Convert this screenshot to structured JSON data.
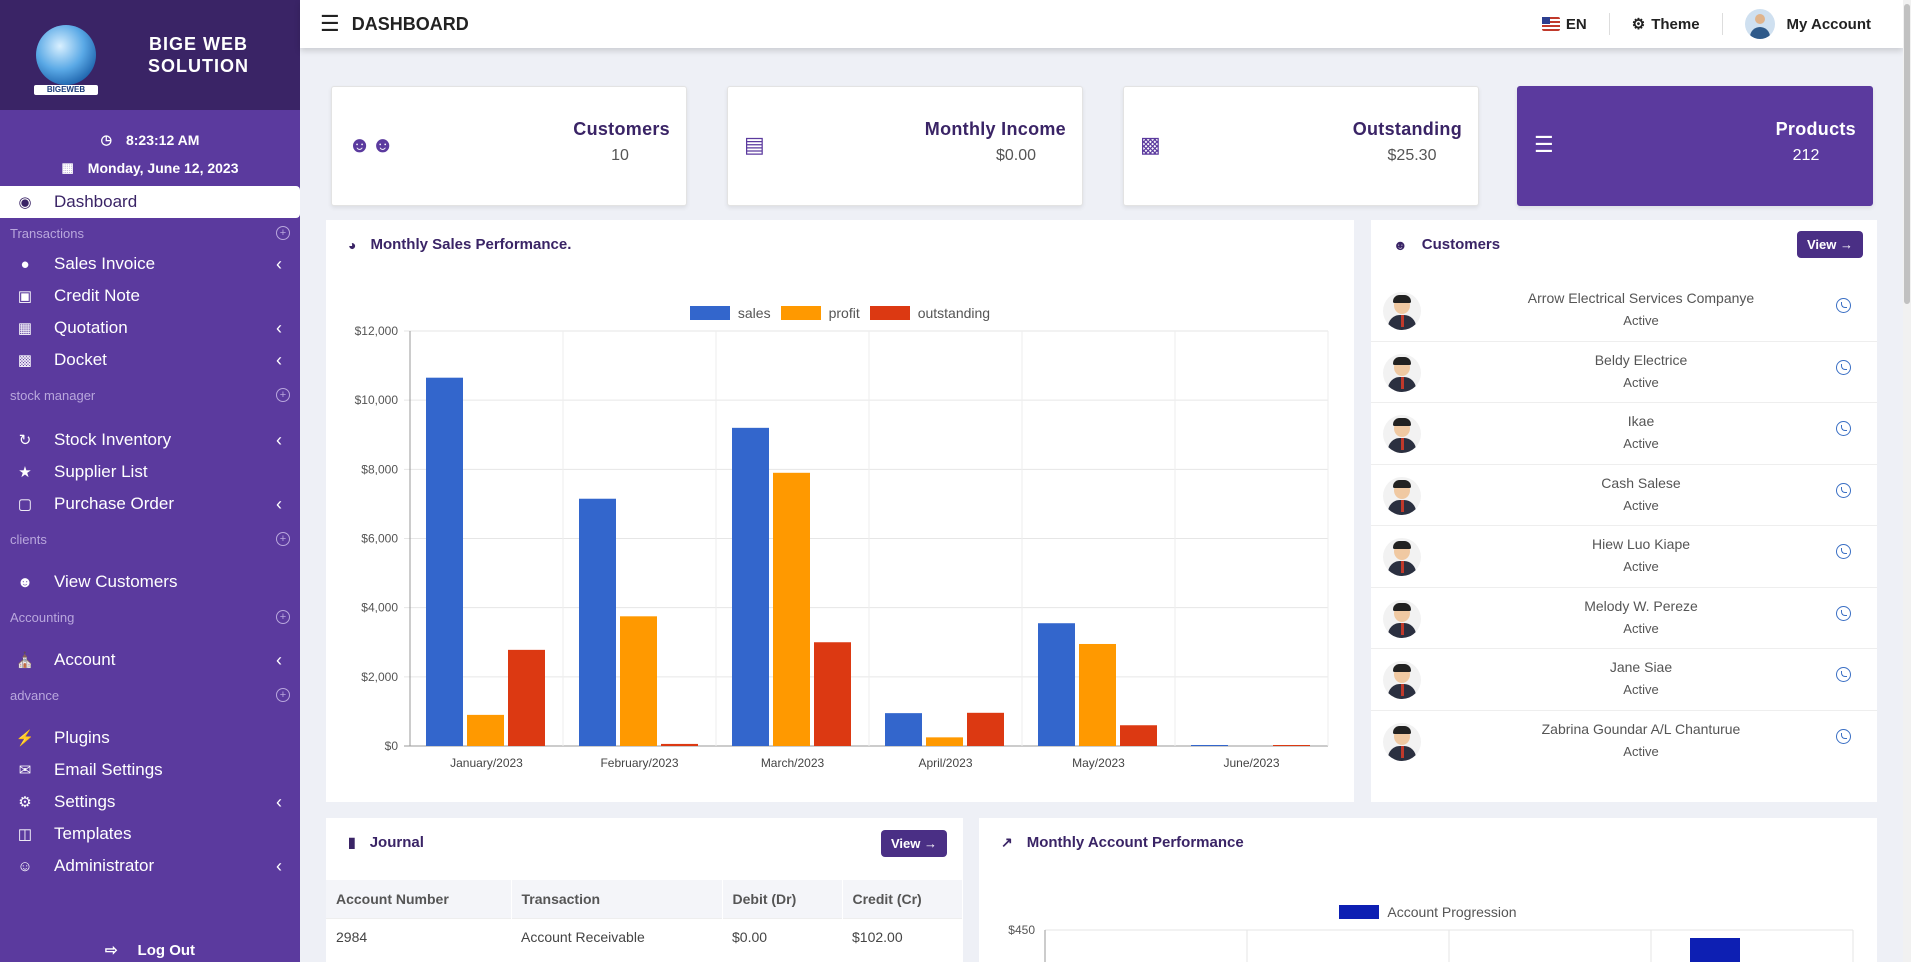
{
  "brand": {
    "logo_text": "BIGEWEB",
    "name_line1": "BIGE WEB",
    "name_line2": "SOLUTION"
  },
  "sidebar": {
    "time": "8:23:12 AM",
    "date": "Monday, June 12, 2023",
    "dashboard": "Dashboard",
    "sections": {
      "transactions": "Transactions",
      "stock": "stock manager",
      "clients": "clients",
      "accounting": "Accounting",
      "advance": "advance"
    },
    "items": {
      "sales_invoice": "Sales Invoice",
      "credit_note": "Credit Note",
      "quotation": "Quotation",
      "docket": "Docket",
      "stock_inventory": "Stock Inventory",
      "supplier_list": "Supplier List",
      "purchase_order": "Purchase Order",
      "view_customers": "View Customers",
      "account": "Account",
      "plugins": "Plugins",
      "email_settings": "Email Settings",
      "settings": "Settings",
      "templates": "Templates",
      "administrator": "Administrator"
    },
    "logout": "Log Out"
  },
  "topbar": {
    "title": "DASHBOARD",
    "language": "EN",
    "theme": "Theme",
    "account": "My Account"
  },
  "stats": {
    "customers": {
      "title": "Customers",
      "value": "10"
    },
    "income": {
      "title": "Monthly Income",
      "value": "$0.00"
    },
    "outstanding": {
      "title": "Outstanding",
      "value": "$25.30"
    },
    "products": {
      "title": "Products",
      "value": "212"
    }
  },
  "sales_panel": {
    "title": "Monthly Sales Performance."
  },
  "customers_panel": {
    "title": "Customers",
    "view": "View",
    "list": [
      {
        "name": "Arrow Electrical Services Companye",
        "status": "Active"
      },
      {
        "name": "Beldy Electrice",
        "status": "Active"
      },
      {
        "name": "Ikae",
        "status": "Active"
      },
      {
        "name": "Cash Salese",
        "status": "Active"
      },
      {
        "name": "Hiew Luo Kiape",
        "status": "Active"
      },
      {
        "name": "Melody W. Pereze",
        "status": "Active"
      },
      {
        "name": "Jane Siae",
        "status": "Active"
      },
      {
        "name": "Zabrina Goundar A/L Chanturue",
        "status": "Active"
      }
    ]
  },
  "journal": {
    "title": "Journal",
    "view": "View",
    "headers": [
      "Account Number",
      "Transaction",
      "Debit (Dr)",
      "Credit (Cr)"
    ],
    "rows": [
      [
        "2984",
        "Account Receivable",
        "$0.00",
        "$102.00"
      ]
    ]
  },
  "account_panel": {
    "title": "Monthly Account Performance"
  },
  "colors": {
    "sidebar": "#5b3a9e",
    "brand_bg": "#3a2466",
    "sales": "#3366cc",
    "profit": "#ff9900",
    "outstanding": "#dc3912",
    "account": "#0d1fb3"
  },
  "chart_data": [
    {
      "type": "bar",
      "categories": [
        "January/2023",
        "February/2023",
        "March/2023",
        "April/2023",
        "May/2023",
        "June/2023"
      ],
      "series": [
        {
          "name": "sales",
          "values": [
            10650,
            7150,
            9200,
            950,
            3550,
            20
          ]
        },
        {
          "name": "profit",
          "values": [
            900,
            3750,
            7900,
            250,
            2950,
            0
          ]
        },
        {
          "name": "outstanding",
          "values": [
            2780,
            60,
            3000,
            960,
            600,
            20
          ]
        }
      ],
      "yticks": [
        "$0",
        "$2,000",
        "$4,000",
        "$6,000",
        "$8,000",
        "$10,000",
        "$12,000"
      ],
      "ylim": [
        0,
        12000
      ],
      "grid": true,
      "legend": "top"
    },
    {
      "type": "bar",
      "series": [
        {
          "name": "Account Progression"
        }
      ],
      "yticks": [
        "$450"
      ],
      "legend": "top"
    }
  ]
}
